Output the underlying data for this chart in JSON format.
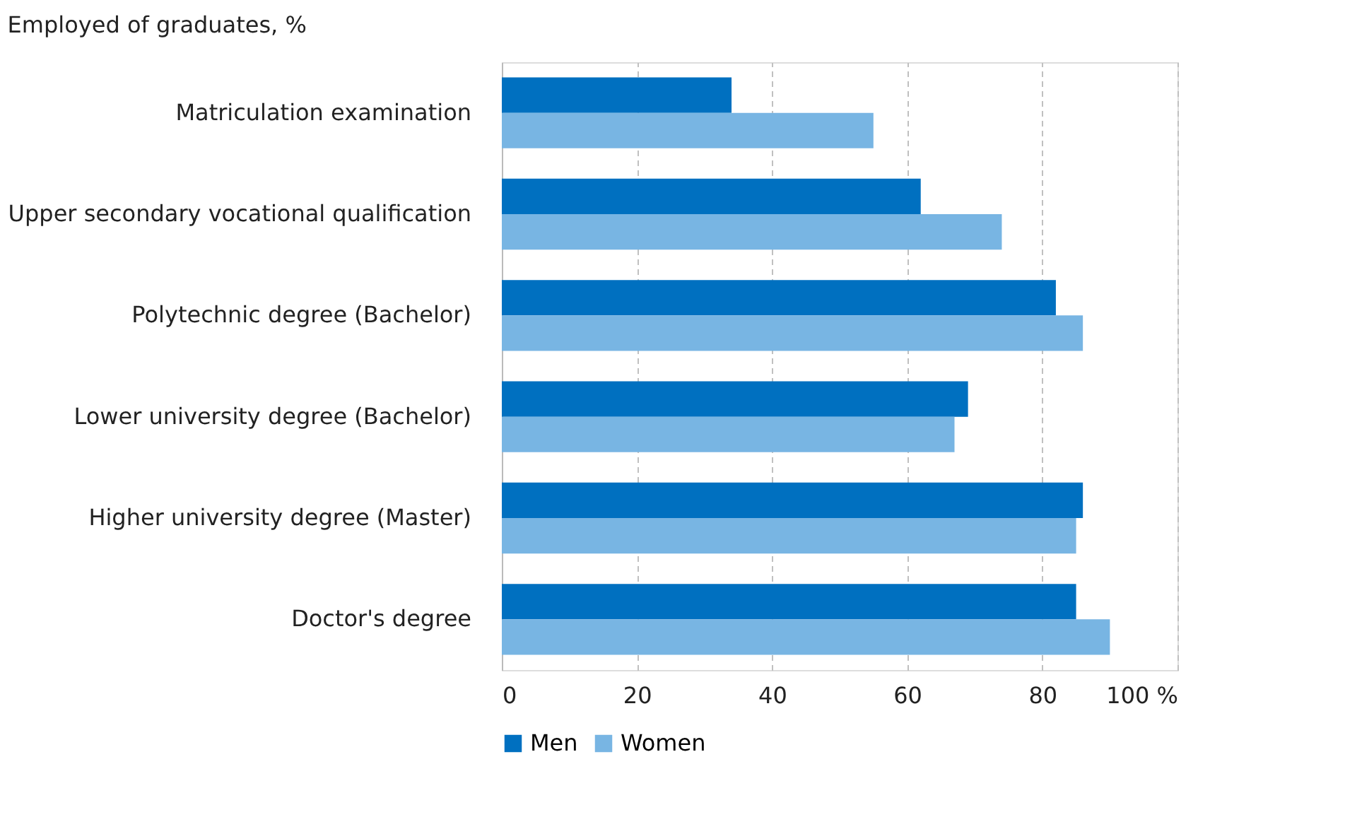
{
  "chart_data": {
    "type": "bar",
    "orientation": "horizontal",
    "title": "Employed of graduates, %",
    "categories": [
      "Matriculation examination",
      "Upper secondary vocational qualification",
      "Polytechnic degree (Bachelor)",
      "Lower university degree (Bachelor)",
      "Higher university degree (Master)",
      "Doctor's degree"
    ],
    "series": [
      {
        "name": "Men",
        "color": "#0070c0",
        "values": [
          34,
          62,
          82,
          69,
          86,
          85
        ]
      },
      {
        "name": "Women",
        "color": "#78b5e3",
        "values": [
          55,
          74,
          86,
          67,
          85,
          90
        ]
      }
    ],
    "xlim": [
      0,
      100
    ],
    "xticks": [
      0,
      20,
      40,
      60,
      80,
      {
        "value": 100,
        "label": "100 %"
      }
    ],
    "grid": "x",
    "legend": "bottom"
  }
}
